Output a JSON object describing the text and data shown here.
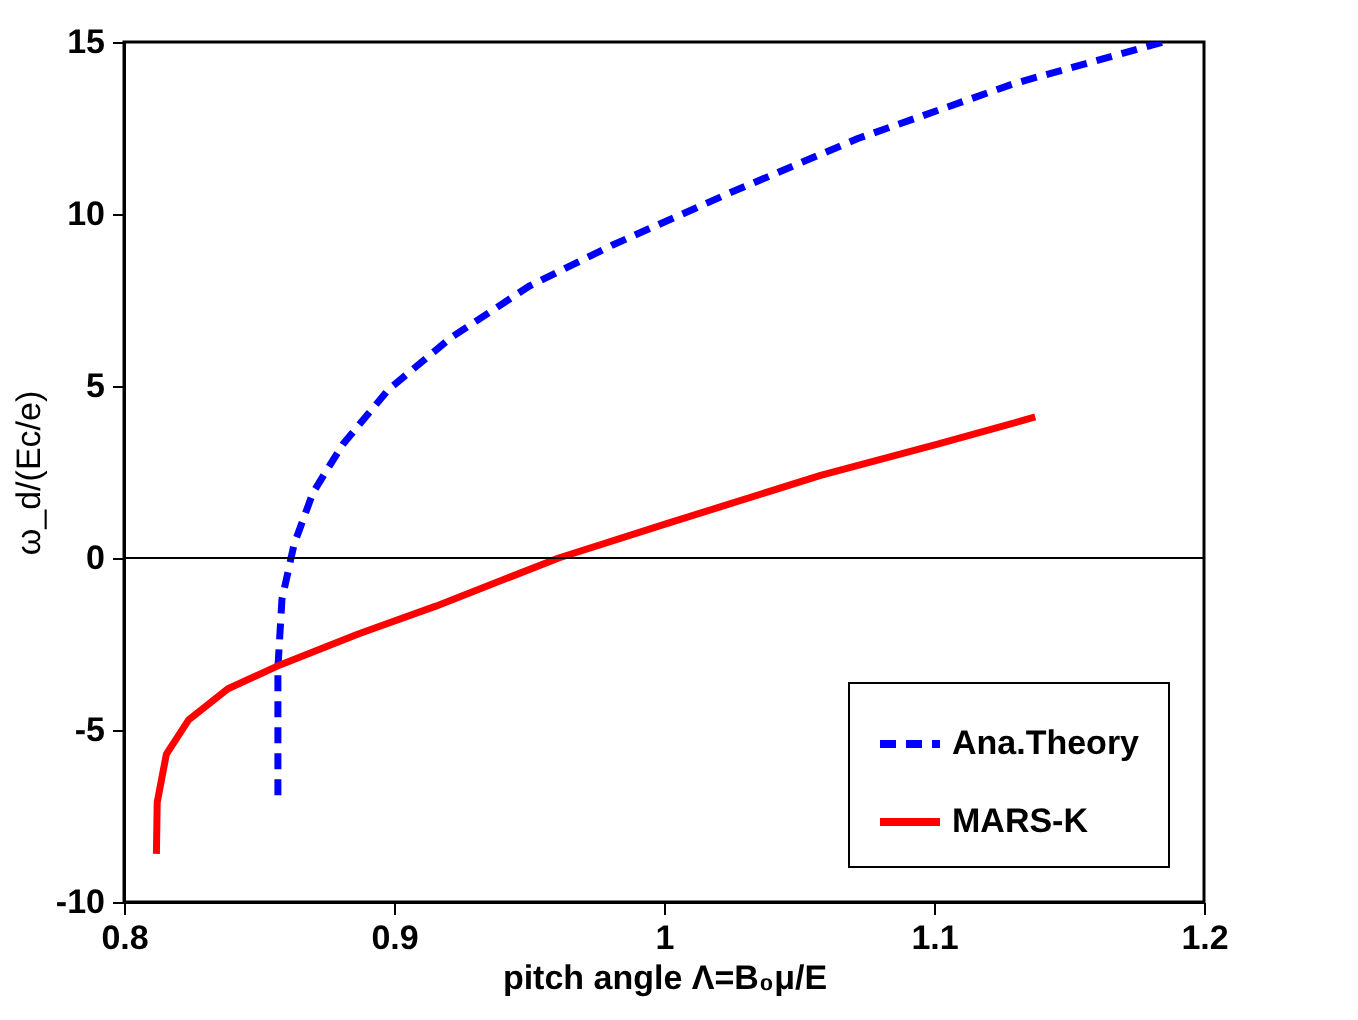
{
  "chart_data": {
    "type": "line",
    "xlabel": "pitch angle Λ=B₀μ/E",
    "ylabel": "ω_d/(Ec/e)",
    "xlim": [
      0.8,
      1.2
    ],
    "ylim": [
      -10,
      15
    ],
    "xticks": [
      0.8,
      0.9,
      1,
      1.1,
      1.2
    ],
    "yticks": [
      -10,
      -5,
      0,
      5,
      10,
      15
    ],
    "grid": false,
    "legend": "bottom right",
    "marker": "none",
    "ref_lines": [
      {
        "axis": "y",
        "value": 0,
        "color": "#000000",
        "line_style": "solid"
      }
    ],
    "series": [
      {
        "name": "Ana.Theory",
        "color": "#0000ff",
        "line_style": "dashed",
        "x": [
          0.857,
          0.857,
          0.8585,
          0.863,
          0.87,
          0.881,
          0.898,
          0.921,
          0.95,
          0.981,
          1.024,
          1.072,
          1.13,
          1.185
        ],
        "values": [
          -6.9,
          -3.2,
          -1.2,
          0.4,
          1.9,
          3.3,
          4.9,
          6.4,
          7.9,
          9.1,
          10.6,
          12.2,
          13.8,
          15
        ]
      },
      {
        "name": "MARS-K",
        "color": "#ff0000",
        "line_style": "solid",
        "x": [
          0.812,
          0.8123,
          0.8157,
          0.824,
          0.8385,
          0.858,
          0.887,
          0.9155,
          0.961,
          1.001,
          1.058,
          1.101,
          1.1375
        ],
        "values": [
          -8.6,
          -7.1,
          -5.7,
          -4.7,
          -3.8,
          -3.1,
          -2.2,
          -1.4,
          0,
          1.0,
          2.4,
          3.3,
          4.1
        ]
      }
    ]
  }
}
